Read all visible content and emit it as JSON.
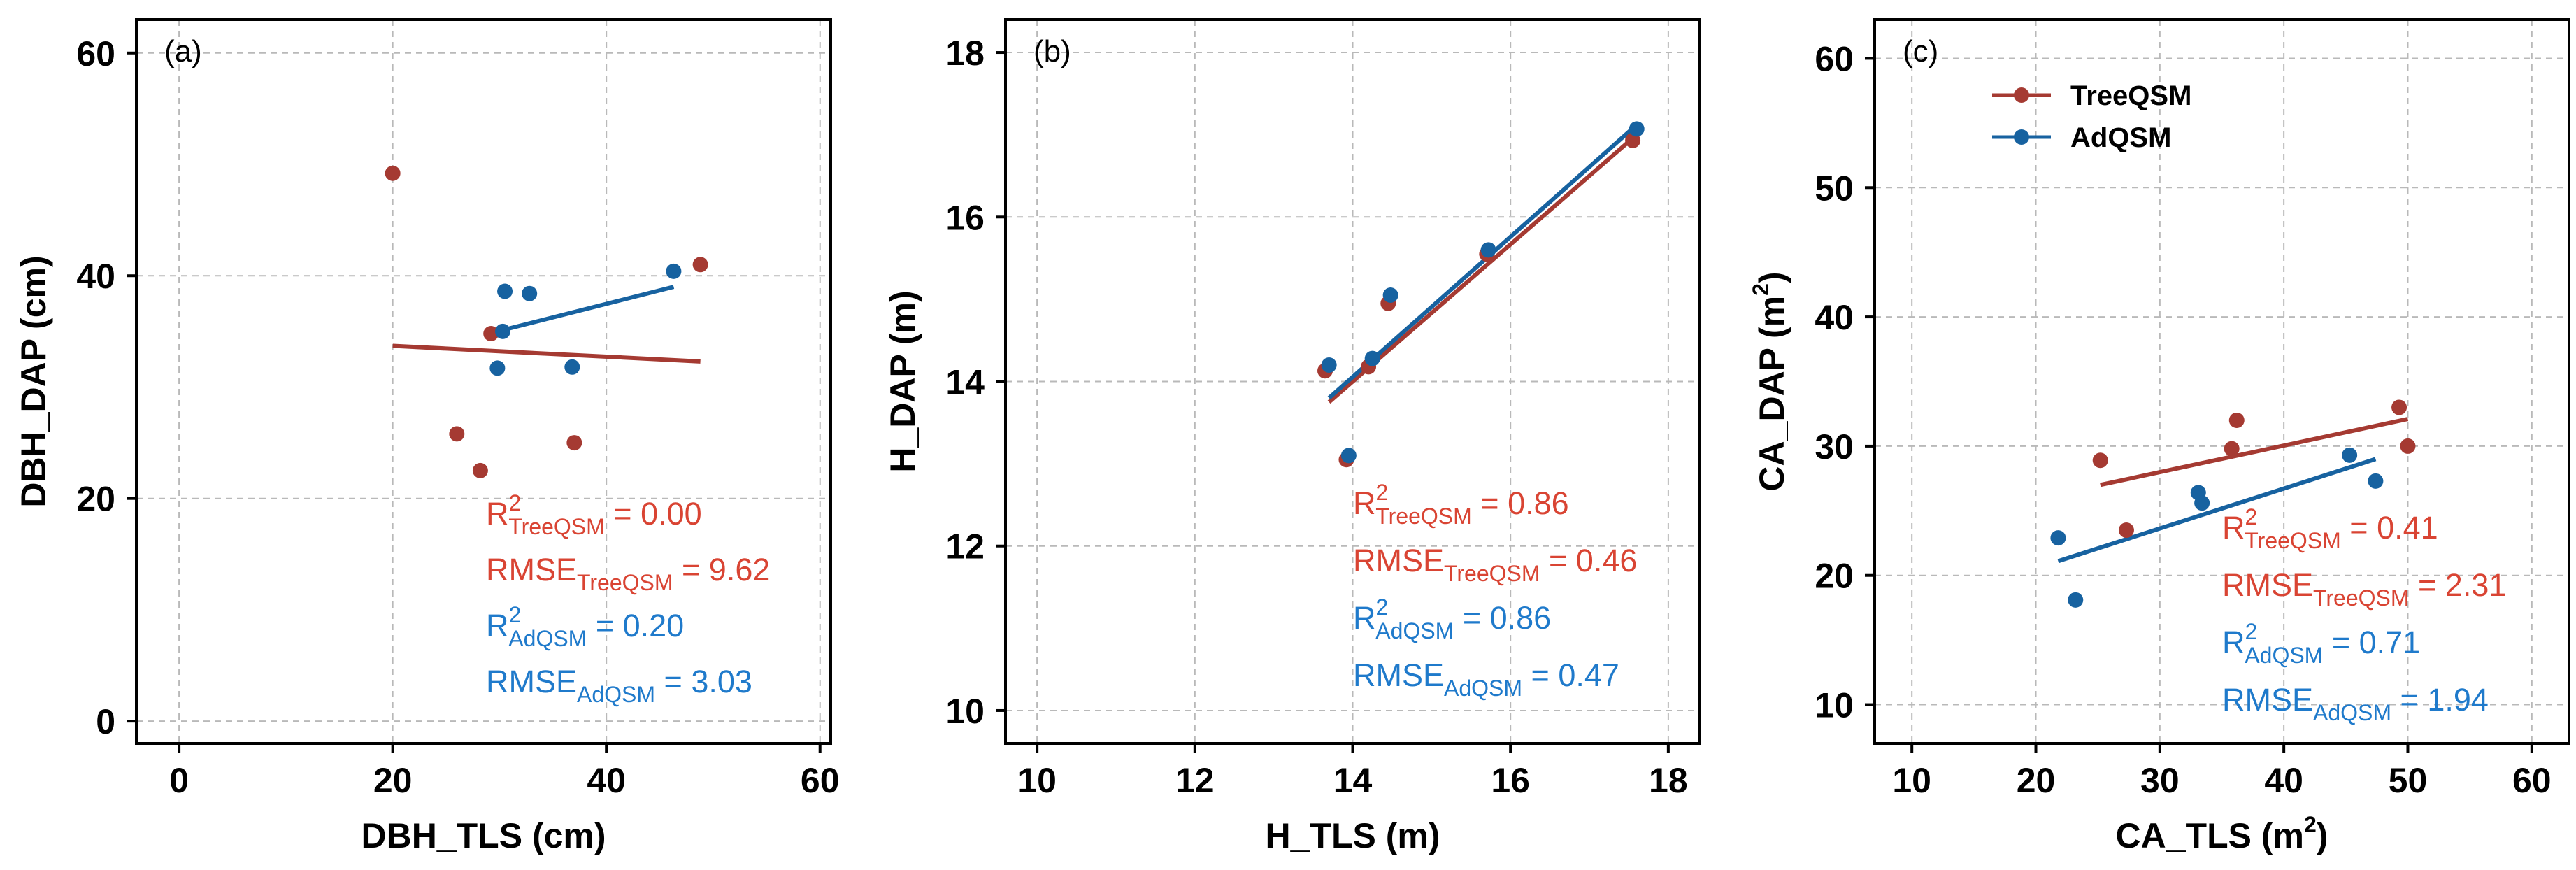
{
  "colors": {
    "treeqsm": "#A53A32",
    "adqsm": "#1762A0",
    "grid": "#b9b9b9",
    "axis": "#000000"
  },
  "chart_data": [
    {
      "type": "scatter",
      "panel_label": "(a)",
      "xlabel": "DBH_TLS (cm)",
      "ylabel": "DBH_DAP (cm)",
      "xlim": [
        -4,
        61
      ],
      "ylim": [
        -2,
        63
      ],
      "xticks": [
        0,
        20,
        40,
        60
      ],
      "yticks": [
        0,
        20,
        40,
        60
      ],
      "grid": true,
      "series": [
        {
          "name": "TreeQSM",
          "color": "#A53A32",
          "points": [
            [
              20,
              49.2
            ],
            [
              26,
              25.8
            ],
            [
              28.2,
              22.5
            ],
            [
              29.2,
              34.8
            ],
            [
              37,
              25
            ],
            [
              48.8,
              41
            ]
          ],
          "fit": [
            [
              20,
              33.7
            ],
            [
              48.8,
              32.3
            ]
          ]
        },
        {
          "name": "AdQSM",
          "color": "#1762A0",
          "points": [
            [
              30.5,
              38.6
            ],
            [
              32.8,
              38.4
            ],
            [
              30.3,
              35
            ],
            [
              29.8,
              31.7
            ],
            [
              36.8,
              31.8
            ],
            [
              46.3,
              40.4
            ]
          ],
          "fit": [
            [
              29.8,
              35
            ],
            [
              46.3,
              39
            ]
          ]
        }
      ],
      "stats": [
        {
          "type": "r2",
          "sub": "TreeQSM",
          "value": "0.00",
          "color": "#D94433"
        },
        {
          "type": "rmse",
          "sub": "TreeQSM",
          "value": "9.62",
          "color": "#D94433"
        },
        {
          "type": "r2",
          "sub": "AdQSM",
          "value": "0.20",
          "color": "#1F7ACB"
        },
        {
          "type": "rmse",
          "sub": "AdQSM",
          "value": "3.03",
          "color": "#1F7ACB"
        }
      ]
    },
    {
      "type": "scatter",
      "panel_label": "(b)",
      "xlabel": "H_TLS (m)",
      "ylabel": "H_DAP (m)",
      "xlim": [
        9.6,
        18.4
      ],
      "ylim": [
        9.6,
        18.4
      ],
      "xticks": [
        10,
        12,
        14,
        16,
        18
      ],
      "yticks": [
        10,
        12,
        14,
        16,
        18
      ],
      "grid": true,
      "series": [
        {
          "name": "TreeQSM",
          "color": "#A53A32",
          "points": [
            [
              13.65,
              14.13
            ],
            [
              13.92,
              13.05
            ],
            [
              14.2,
              14.18
            ],
            [
              14.45,
              14.95
            ],
            [
              15.7,
              15.55
            ],
            [
              17.55,
              16.93
            ]
          ],
          "fit": [
            [
              13.7,
              13.75
            ],
            [
              17.6,
              17.0
            ]
          ]
        },
        {
          "name": "AdQSM",
          "color": "#1762A0",
          "points": [
            [
              13.7,
              14.2
            ],
            [
              13.95,
              13.1
            ],
            [
              14.25,
              14.28
            ],
            [
              14.48,
              15.05
            ],
            [
              15.72,
              15.6
            ],
            [
              17.6,
              17.07
            ]
          ],
          "fit": [
            [
              13.7,
              13.8
            ],
            [
              17.6,
              17.12
            ]
          ]
        }
      ],
      "stats": [
        {
          "type": "r2",
          "sub": "TreeQSM",
          "value": "0.86",
          "color": "#D94433"
        },
        {
          "type": "rmse",
          "sub": "TreeQSM",
          "value": "0.46",
          "color": "#D94433"
        },
        {
          "type": "r2",
          "sub": "AdQSM",
          "value": "0.86",
          "color": "#1F7ACB"
        },
        {
          "type": "rmse",
          "sub": "AdQSM",
          "value": "0.47",
          "color": "#1F7ACB"
        }
      ]
    },
    {
      "type": "scatter",
      "panel_label": "(c)",
      "xlabel": "CA_TLS (m²)",
      "ylabel": "CA_DAP (m²)",
      "xlim": [
        7,
        63
      ],
      "ylim": [
        7,
        63
      ],
      "xticks": [
        10,
        20,
        30,
        40,
        50,
        60
      ],
      "yticks": [
        10,
        20,
        30,
        40,
        50,
        60
      ],
      "grid": true,
      "legend": {
        "position": "top-left",
        "entries": [
          "TreeQSM",
          "AdQSM"
        ]
      },
      "series": [
        {
          "name": "TreeQSM",
          "color": "#A53A32",
          "points": [
            [
              25.2,
              28.9
            ],
            [
              27.3,
              23.5
            ],
            [
              35.8,
              29.8
            ],
            [
              36.2,
              32
            ],
            [
              49.3,
              33
            ],
            [
              50,
              30
            ]
          ],
          "fit": [
            [
              25.2,
              27
            ],
            [
              50,
              32.1
            ]
          ]
        },
        {
          "name": "AdQSM",
          "color": "#1762A0",
          "points": [
            [
              21.8,
              22.9
            ],
            [
              23.2,
              18.1
            ],
            [
              33.1,
              26.4
            ],
            [
              33.4,
              25.6
            ],
            [
              45.3,
              29.3
            ],
            [
              47.4,
              27.3
            ]
          ],
          "fit": [
            [
              21.8,
              21.1
            ],
            [
              47.4,
              29
            ]
          ]
        }
      ],
      "stats": [
        {
          "type": "r2",
          "sub": "TreeQSM",
          "value": "0.41",
          "color": "#D94433"
        },
        {
          "type": "rmse",
          "sub": "TreeQSM",
          "value": "2.31",
          "color": "#D94433"
        },
        {
          "type": "r2",
          "sub": "AdQSM",
          "value": "0.71",
          "color": "#1F7ACB"
        },
        {
          "type": "rmse",
          "sub": "AdQSM",
          "value": "1.94",
          "color": "#1F7ACB"
        }
      ]
    }
  ]
}
